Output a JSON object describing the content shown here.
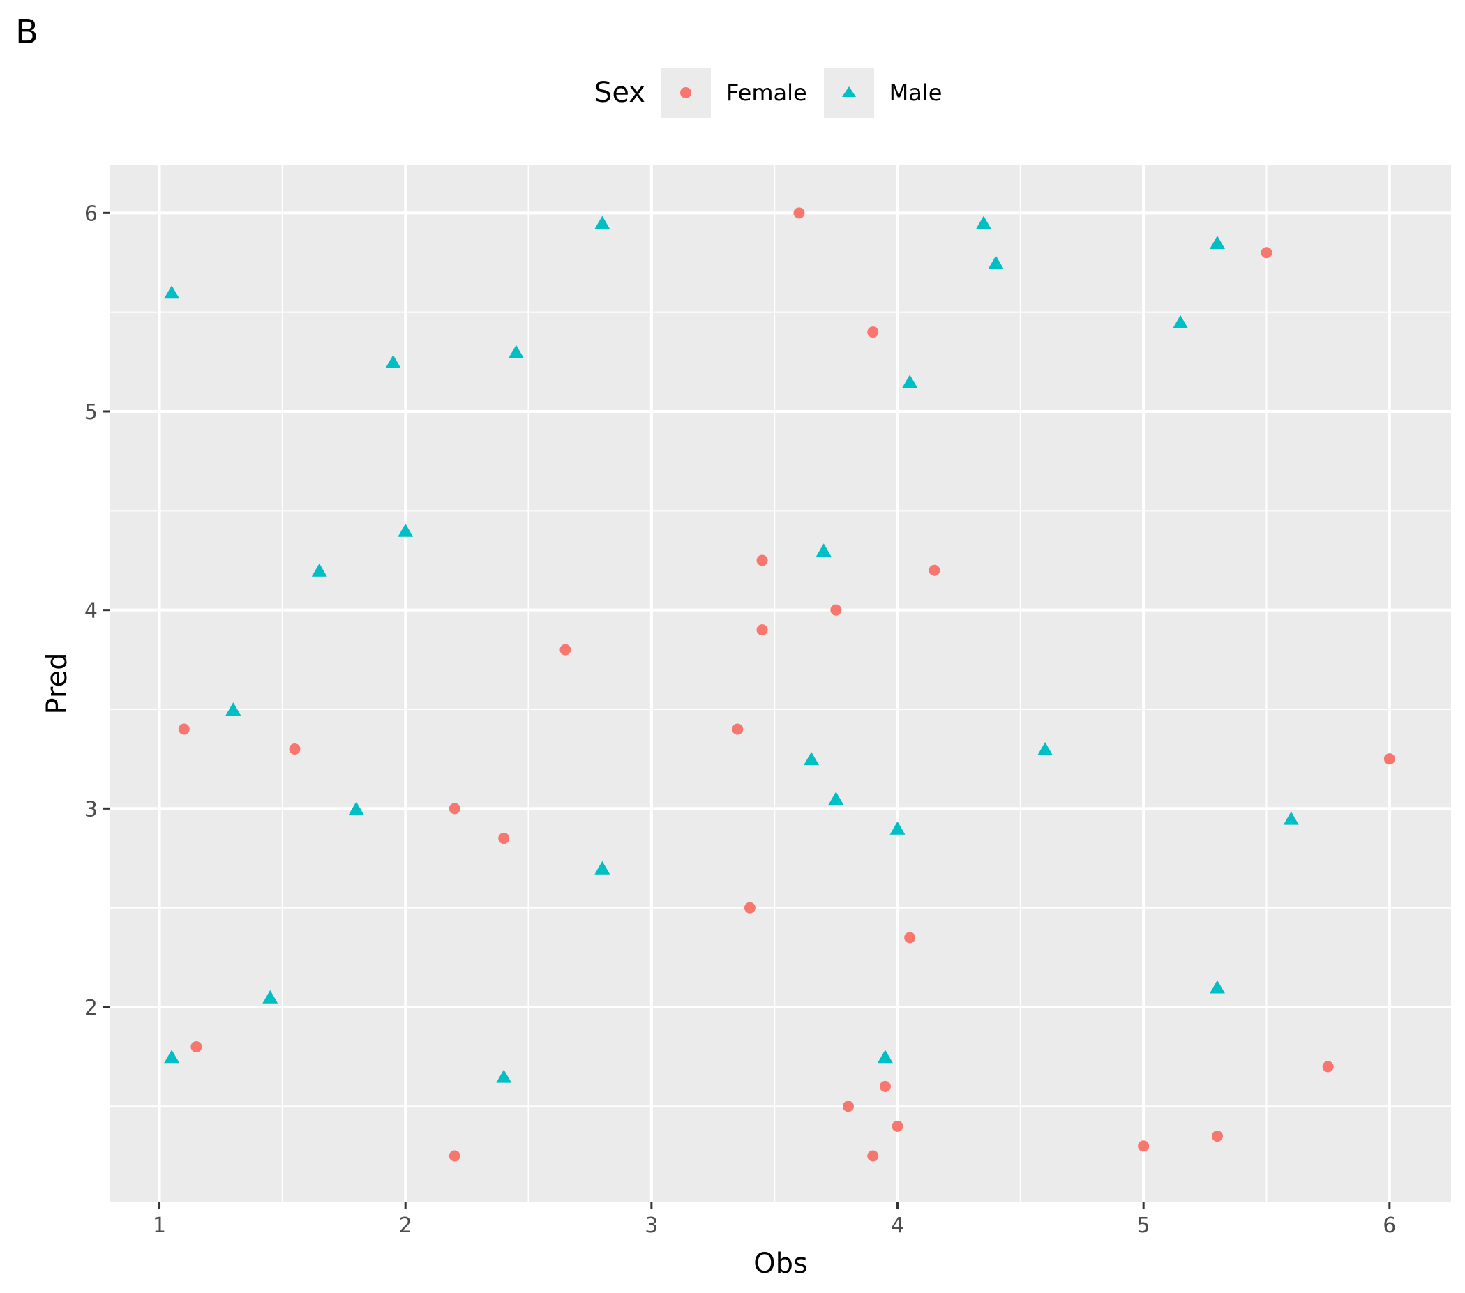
{
  "figure": {
    "panel_tag": "B",
    "legend": {
      "title": "Sex",
      "items": [
        {
          "label": "Female",
          "shape": "circle",
          "color": "#F8766D"
        },
        {
          "label": "Male",
          "shape": "triangle",
          "color": "#00BFC4"
        }
      ]
    },
    "colors": {
      "panel_bg": "#EBEBEB",
      "grid": "#FFFFFF",
      "female": "#F8766D",
      "male": "#00BFC4"
    }
  },
  "chart_data": {
    "type": "scatter",
    "title": "",
    "xlabel": "Obs",
    "ylabel": "Pred",
    "xlim": [
      0.8,
      6.25
    ],
    "ylim": [
      1.02,
      6.24
    ],
    "xticks": [
      1,
      2,
      3,
      4,
      5,
      6
    ],
    "yticks": [
      2,
      3,
      4,
      5,
      6
    ],
    "grid": true,
    "legend_position": "top",
    "legend_title": "Sex",
    "series": [
      {
        "name": "Female",
        "shape": "circle",
        "color": "#F8766D",
        "points": [
          [
            1.1,
            3.4
          ],
          [
            1.15,
            1.8
          ],
          [
            1.55,
            3.3
          ],
          [
            2.2,
            3.0
          ],
          [
            2.2,
            1.25
          ],
          [
            2.4,
            2.85
          ],
          [
            2.65,
            3.8
          ],
          [
            3.35,
            3.4
          ],
          [
            3.4,
            2.5
          ],
          [
            3.45,
            4.25
          ],
          [
            3.45,
            3.9
          ],
          [
            3.6,
            6.0
          ],
          [
            3.75,
            4.0
          ],
          [
            3.8,
            1.5
          ],
          [
            3.9,
            5.4
          ],
          [
            3.9,
            1.25
          ],
          [
            3.95,
            1.6
          ],
          [
            4.0,
            1.4
          ],
          [
            4.05,
            2.35
          ],
          [
            4.15,
            4.2
          ],
          [
            5.0,
            1.3
          ],
          [
            5.3,
            1.35
          ],
          [
            5.5,
            5.8
          ],
          [
            5.75,
            1.7
          ],
          [
            6.0,
            3.25
          ]
        ]
      },
      {
        "name": "Male",
        "shape": "triangle",
        "color": "#00BFC4",
        "points": [
          [
            1.05,
            5.6
          ],
          [
            1.05,
            1.75
          ],
          [
            1.3,
            3.5
          ],
          [
            1.45,
            2.05
          ],
          [
            1.65,
            4.2
          ],
          [
            1.8,
            3.0
          ],
          [
            1.95,
            5.25
          ],
          [
            2.0,
            4.4
          ],
          [
            2.4,
            1.65
          ],
          [
            2.45,
            5.3
          ],
          [
            2.8,
            5.95
          ],
          [
            2.8,
            2.7
          ],
          [
            3.65,
            3.25
          ],
          [
            3.7,
            4.3
          ],
          [
            3.75,
            3.05
          ],
          [
            3.95,
            1.75
          ],
          [
            4.0,
            2.9
          ],
          [
            4.05,
            5.15
          ],
          [
            4.35,
            5.95
          ],
          [
            4.4,
            5.75
          ],
          [
            4.6,
            3.3
          ],
          [
            5.15,
            5.45
          ],
          [
            5.3,
            5.85
          ],
          [
            5.3,
            2.1
          ],
          [
            5.6,
            2.95
          ]
        ]
      }
    ]
  }
}
